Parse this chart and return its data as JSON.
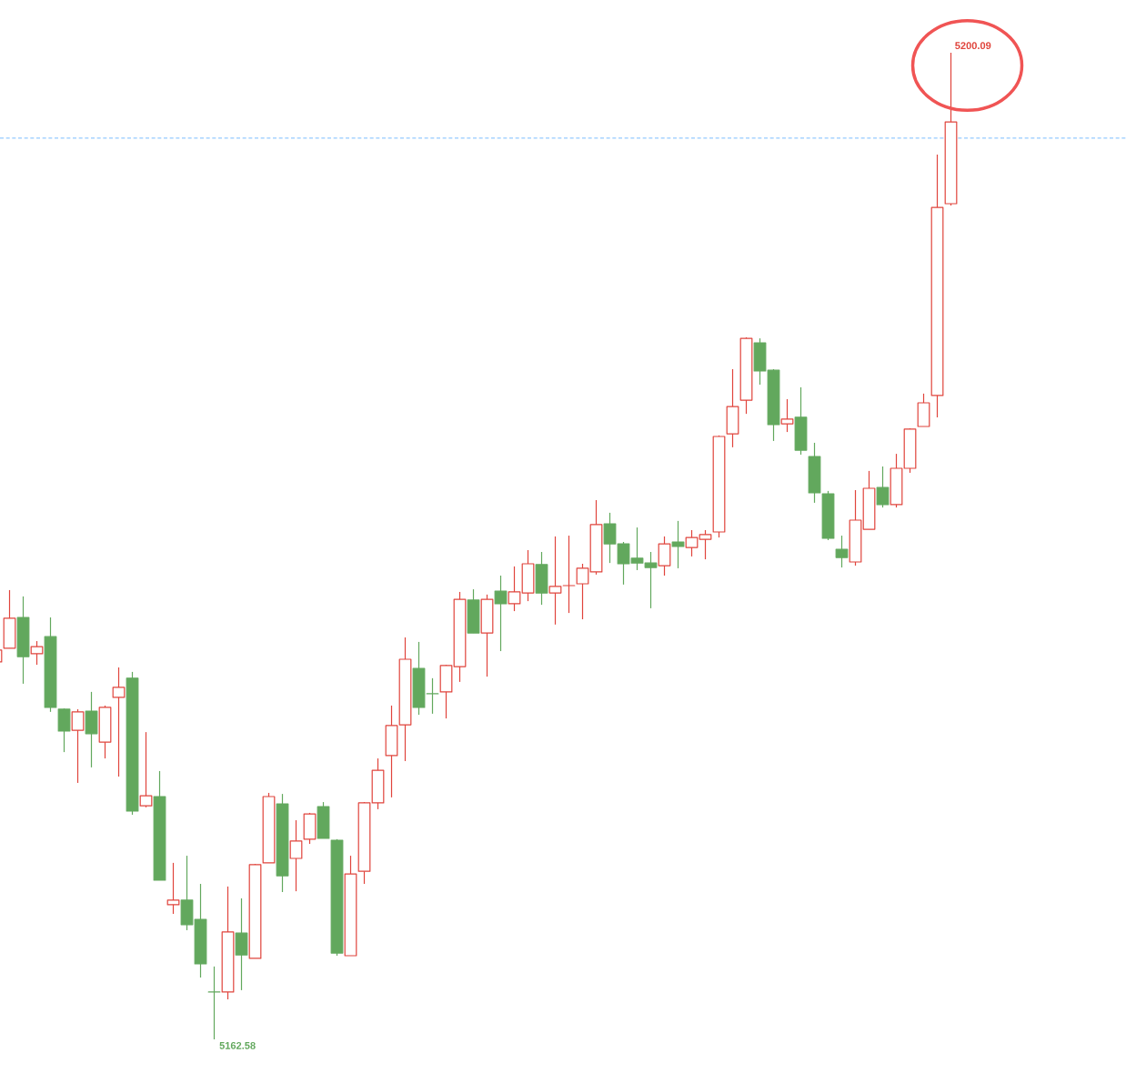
{
  "chart_data": {
    "type": "candlestick",
    "categories": [
      null,
      null,
      null,
      null,
      null,
      null,
      null,
      null,
      null,
      null,
      null,
      null,
      null,
      null,
      null,
      null,
      null,
      null,
      null,
      null,
      null,
      null,
      null,
      null,
      null,
      null,
      null,
      null,
      null,
      null,
      null,
      null,
      null,
      null,
      null,
      null,
      null,
      null,
      null,
      null,
      null,
      null,
      null,
      null,
      null,
      null,
      null,
      null,
      null,
      null,
      null,
      null,
      null,
      null,
      null,
      null,
      null,
      null,
      null,
      null,
      null,
      null,
      null,
      null,
      null,
      null,
      null,
      null,
      null,
      null,
      null
    ],
    "ohlc": [
      [
        5176.93,
        5177.48,
        5176.86,
        5177.38
      ],
      [
        5177.45,
        5179.66,
        5177.45,
        5178.59
      ],
      [
        5178.62,
        5179.42,
        5176.1,
        5177.13
      ],
      [
        5177.24,
        5177.72,
        5176.82,
        5177.51
      ],
      [
        5177.89,
        5178.62,
        5175.03,
        5175.2
      ],
      [
        5175.13,
        5175.16,
        5173.5,
        5174.3
      ],
      [
        5174.33,
        5175.13,
        5172.33,
        5175.03
      ],
      [
        5175.06,
        5175.79,
        5172.92,
        5174.2
      ],
      [
        5173.88,
        5175.27,
        5173.26,
        5175.2
      ],
      [
        5175.58,
        5176.72,
        5172.57,
        5175.96
      ],
      [
        5176.31,
        5176.55,
        5171.12,
        5171.26
      ],
      [
        5171.46,
        5174.26,
        5171.4,
        5171.84
      ],
      [
        5171.81,
        5172.78,
        5168.63,
        5168.63
      ],
      [
        5167.7,
        5169.29,
        5167.35,
        5167.87
      ],
      [
        5167.87,
        5169.56,
        5166.73,
        5166.94
      ],
      [
        5167.14,
        5168.49,
        5164.93,
        5165.45
      ],
      [
        5164.38,
        5165.35,
        5162.58,
        5164.38
      ],
      [
        5164.38,
        5168.39,
        5164.1,
        5166.66
      ],
      [
        5166.62,
        5167.94,
        5164.45,
        5165.79
      ],
      [
        5165.66,
        5169.25,
        5165.66,
        5169.22
      ],
      [
        5169.29,
        5171.95,
        5169.29,
        5171.81
      ],
      [
        5171.53,
        5171.91,
        5168.18,
        5168.8
      ],
      [
        5169.46,
        5170.91,
        5168.21,
        5170.12
      ],
      [
        5170.19,
        5171.19,
        5170.01,
        5171.15
      ],
      [
        5171.43,
        5171.6,
        5170.22,
        5170.22
      ],
      [
        5170.15,
        5170.19,
        5165.76,
        5165.86
      ],
      [
        5165.76,
        5169.56,
        5165.76,
        5168.87
      ],
      [
        5168.97,
        5171.6,
        5168.49,
        5171.57
      ],
      [
        5171.57,
        5173.26,
        5171.33,
        5172.81
      ],
      [
        5173.37,
        5175.27,
        5171.78,
        5174.51
      ],
      [
        5174.54,
        5177.86,
        5173.16,
        5177.03
      ],
      [
        5176.68,
        5177.69,
        5174.92,
        5175.2
      ],
      [
        5175.72,
        5176.31,
        5174.96,
        5175.72
      ],
      [
        5175.79,
        5176.82,
        5174.78,
        5176.79
      ],
      [
        5176.75,
        5179.59,
        5176.17,
        5179.31
      ],
      [
        5179.28,
        5179.69,
        5178.03,
        5178.03
      ],
      [
        5178.03,
        5179.49,
        5176.37,
        5179.31
      ],
      [
        5179.62,
        5180.21,
        5177.34,
        5179.14
      ],
      [
        5179.14,
        5180.56,
        5178.86,
        5179.59
      ],
      [
        5179.55,
        5181.18,
        5179.24,
        5180.66
      ],
      [
        5180.63,
        5181.11,
        5179.1,
        5179.55
      ],
      [
        5179.55,
        5181.7,
        5178.35,
        5179.8
      ],
      [
        5179.83,
        5181.73,
        5178.79,
        5179.83
      ],
      [
        5179.9,
        5180.66,
        5178.55,
        5180.49
      ],
      [
        5180.35,
        5183.08,
        5180.25,
        5182.15
      ],
      [
        5182.18,
        5182.6,
        5180.69,
        5181.42
      ],
      [
        5181.42,
        5181.49,
        5179.87,
        5180.66
      ],
      [
        5180.87,
        5182.04,
        5180.42,
        5180.69
      ],
      [
        5180.69,
        5181.11,
        5178.97,
        5180.52
      ],
      [
        5180.59,
        5181.7,
        5180.21,
        5181.42
      ],
      [
        5181.49,
        5182.29,
        5180.49,
        5181.32
      ],
      [
        5181.28,
        5181.94,
        5180.94,
        5181.66
      ],
      [
        5181.59,
        5181.94,
        5180.83,
        5181.77
      ],
      [
        5181.87,
        5185.54,
        5181.66,
        5185.5
      ],
      [
        5185.6,
        5188.06,
        5185.09,
        5186.64
      ],
      [
        5186.88,
        5189.27,
        5186.36,
        5189.23
      ],
      [
        5189.06,
        5189.23,
        5187.47,
        5187.99
      ],
      [
        5188.02,
        5188.06,
        5185.33,
        5185.95
      ],
      [
        5185.98,
        5186.92,
        5185.67,
        5186.16
      ],
      [
        5186.23,
        5187.37,
        5184.81,
        5184.98
      ],
      [
        5184.74,
        5185.26,
        5182.98,
        5183.36
      ],
      [
        5183.32,
        5183.43,
        5181.56,
        5181.63
      ],
      [
        5181.21,
        5181.73,
        5180.52,
        5180.9
      ],
      [
        5180.73,
        5183.46,
        5180.59,
        5182.32
      ],
      [
        5181.97,
        5184.19,
        5181.97,
        5183.53
      ],
      [
        5183.56,
        5184.36,
        5182.8,
        5182.91
      ],
      [
        5182.91,
        5184.84,
        5182.8,
        5184.29
      ],
      [
        5184.29,
        5185.81,
        5184.12,
        5185.78
      ],
      [
        5185.88,
        5187.13,
        5185.88,
        5186.78
      ],
      [
        5187.06,
        5196.22,
        5186.23,
        5194.21
      ],
      [
        5194.35,
        5200.09,
        5194.28,
        5197.46
      ]
    ],
    "colors": [
      "#e0443c",
      "#e0443c",
      "#62a85d",
      "#e0443c",
      "#62a85d",
      "#62a85d",
      "#e0443c",
      "#62a85d",
      "#e0443c",
      "#e0443c",
      "#62a85d",
      "#e0443c",
      "#62a85d",
      "#e0443c",
      "#62a85d",
      "#62a85d",
      "#62a85d",
      "#e0443c",
      "#62a85d",
      "#e0443c",
      "#e0443c",
      "#62a85d",
      "#e0443c",
      "#e0443c",
      "#62a85d",
      "#62a85d",
      "#e0443c",
      "#e0443c",
      "#e0443c",
      "#e0443c",
      "#e0443c",
      "#62a85d",
      "#62a85d",
      "#e0443c",
      "#e0443c",
      "#62a85d",
      "#e0443c",
      "#62a85d",
      "#e0443c",
      "#e0443c",
      "#62a85d",
      "#e0443c",
      "#e0443c",
      "#e0443c",
      "#e0443c",
      "#62a85d",
      "#62a85d",
      "#62a85d",
      "#62a85d",
      "#e0443c",
      "#62a85d",
      "#e0443c",
      "#e0443c",
      "#e0443c",
      "#e0443c",
      "#e0443c",
      "#62a85d",
      "#62a85d",
      "#e0443c",
      "#62a85d",
      "#62a85d",
      "#62a85d",
      "#62a85d",
      "#e0443c",
      "#e0443c",
      "#62a85d",
      "#e0443c",
      "#e0443c",
      "#e0443c",
      "#e0443c",
      "#e0443c"
    ],
    "ref_lines": [
      {
        "axis": "y",
        "value": 5196.84,
        "color": "#1e90ff",
        "line_style": "dashed"
      }
    ],
    "annotations": [
      "5200.09",
      "5162.58"
    ]
  }
}
